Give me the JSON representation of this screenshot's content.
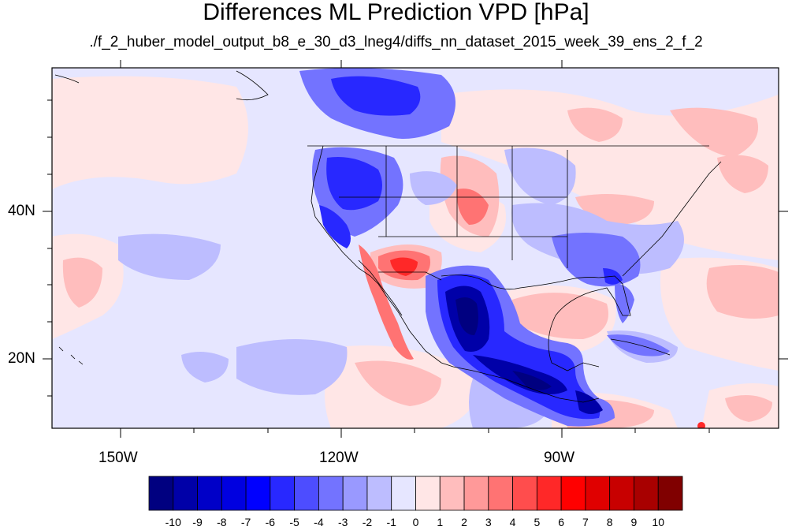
{
  "title": "Differences ML Prediction VPD [hPa]",
  "subtitle": "./f_2_huber_model_output_b8_e_30_d3_lneg4/diffs_nn_dataset_2015_week_39_ens_2_f_2",
  "lat_labels": [
    "40N",
    "20N"
  ],
  "lon_labels": [
    "150W",
    "120W",
    "90W"
  ],
  "colorbar": {
    "labels": [
      "-10",
      "-9",
      "-8",
      "-7",
      "-6",
      "-5",
      "-4",
      "-3",
      "-2",
      "-1",
      "0",
      "1",
      "2",
      "3",
      "4",
      "5",
      "6",
      "7",
      "8",
      "9",
      "10"
    ],
    "colors": [
      "#000080",
      "#0000a8",
      "#0000c8",
      "#0000e0",
      "#0000ff",
      "#2828ff",
      "#4d4dff",
      "#7373ff",
      "#9999ff",
      "#bdbdff",
      "#e6e6ff",
      "#ffe6e6",
      "#ffbdbd",
      "#ff9999",
      "#ff7373",
      "#ff4d4d",
      "#ff2828",
      "#ff0000",
      "#e00000",
      "#c80000",
      "#a80000",
      "#800000"
    ]
  },
  "colors": {
    "near_zero_neg": "#e6e6ff",
    "near_zero_pos": "#ffe6e6",
    "strong_negative": "#000080",
    "strong_positive": "#800000",
    "border": "#000000"
  }
}
